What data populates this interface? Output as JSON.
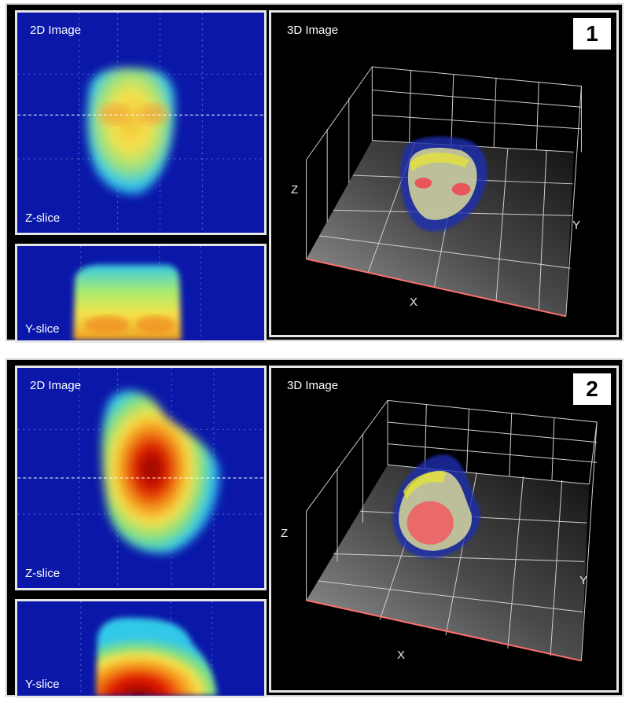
{
  "figures": [
    {
      "badge": "1",
      "view2d_label": "2D Image",
      "z_slice_label": "Z-slice",
      "y_slice_label": "Y-slice",
      "view3d_label": "3D Image",
      "axes": {
        "x": "X",
        "y": "Y",
        "z": "Z"
      }
    },
    {
      "badge": "2",
      "view2d_label": "2D Image",
      "z_slice_label": "Z-slice",
      "y_slice_label": "Y-slice",
      "view3d_label": "3D Image",
      "axes": {
        "x": "X",
        "y": "Y",
        "z": "Z"
      }
    }
  ],
  "colors": {
    "background_blue": "#0a17a8",
    "panel_border": "#e6e6e6",
    "grid_line": "#ffffff",
    "hot_red": "#b40000"
  }
}
